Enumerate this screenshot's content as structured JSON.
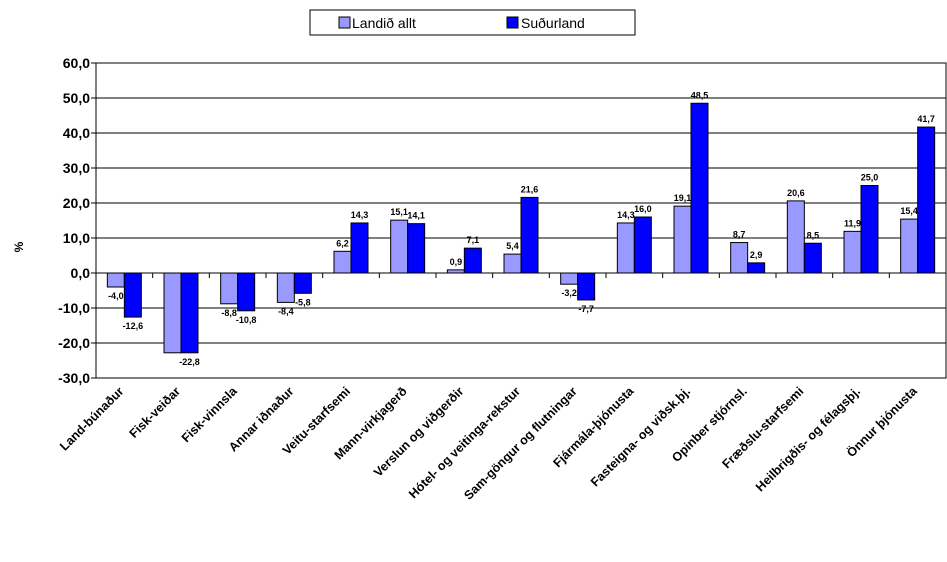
{
  "chart_data": {
    "type": "bar",
    "ylabel": "%",
    "ylim": [
      -30,
      60
    ],
    "ytick_step": 10,
    "ytick_decimals": 1,
    "grid": true,
    "legend_position": "top-center",
    "categories": [
      "Land-búnaður",
      "Fisk-veiðar",
      "Fisk-vinnsla",
      "Annar iðnaður",
      "Veitu-starfsemi",
      "Mann-virkjagerð",
      "Verslun og viðgerðir",
      "Hótel- og veitinga-rekstur",
      "Sam-göngur og flutningar",
      "Fjármála-þjónusta",
      "Fasteigna- og viðsk.þj.",
      "Opinber stjórnsl.",
      "Fræðslu-starfsemi",
      "Heilbrigðis- og félagsþj.",
      "Önnur þjónusta"
    ],
    "series": [
      {
        "name": "Landið allt",
        "color": "#9999ff",
        "values": [
          -4.0,
          -22.8,
          -8.8,
          -8.4,
          6.2,
          15.1,
          0.9,
          5.4,
          -3.2,
          14.3,
          19.1,
          8.7,
          20.6,
          11.9,
          15.4
        ],
        "labels": [
          "-4,0",
          "",
          "-8,8",
          "-8,4",
          "6,2",
          "15,1",
          "0,9",
          "5,4",
          "-3,2",
          "14,3",
          "19,1",
          "8,7",
          "20,6",
          "11,9",
          "15,4"
        ]
      },
      {
        "name": "Suðurland",
        "color": "#0000ff",
        "values": [
          -12.6,
          -22.8,
          -10.8,
          -5.8,
          14.3,
          14.1,
          7.1,
          21.6,
          -7.7,
          16.0,
          48.5,
          2.9,
          8.5,
          25.0,
          41.7
        ],
        "labels": [
          "-12,6",
          "-22,8",
          "-10,8",
          "-5,8",
          "14,3",
          "14,1",
          "7,1",
          "21,6",
          "-7,7",
          "16,0",
          "48,5",
          "2,9",
          "8,5",
          "25,0",
          "41,7"
        ]
      }
    ]
  }
}
